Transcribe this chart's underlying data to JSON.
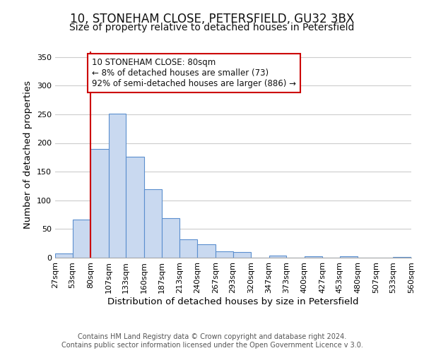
{
  "title": "10, STONEHAM CLOSE, PETERSFIELD, GU32 3BX",
  "subtitle": "Size of property relative to detached houses in Petersfield",
  "xlabel": "Distribution of detached houses by size in Petersfield",
  "ylabel": "Number of detached properties",
  "bar_color": "#c9d9f0",
  "bar_edge_color": "#5b8fce",
  "background_color": "#ffffff",
  "grid_color": "#cccccc",
  "vline_x": 80,
  "vline_color": "#cc0000",
  "annotation_box_text": "10 STONEHAM CLOSE: 80sqm\n← 8% of detached houses are smaller (73)\n92% of semi-detached houses are larger (886) →",
  "annotation_box_color": "#cc0000",
  "annotation_fontsize": 8.5,
  "footer_line1": "Contains HM Land Registry data © Crown copyright and database right 2024.",
  "footer_line2": "Contains public sector information licensed under the Open Government Licence v 3.0.",
  "bin_edges": [
    27,
    53,
    80,
    107,
    133,
    160,
    187,
    213,
    240,
    267,
    293,
    320,
    347,
    373,
    400,
    427,
    453,
    480,
    507,
    533,
    560
  ],
  "bin_heights": [
    7,
    66,
    189,
    251,
    176,
    119,
    69,
    32,
    24,
    11,
    10,
    0,
    4,
    0,
    3,
    0,
    2,
    0,
    0,
    1
  ],
  "tick_labels": [
    "27sqm",
    "53sqm",
    "80sqm",
    "107sqm",
    "133sqm",
    "160sqm",
    "187sqm",
    "213sqm",
    "240sqm",
    "267sqm",
    "293sqm",
    "320sqm",
    "347sqm",
    "373sqm",
    "400sqm",
    "427sqm",
    "453sqm",
    "480sqm",
    "507sqm",
    "533sqm",
    "560sqm"
  ],
  "ylim": [
    0,
    360
  ],
  "yticks": [
    0,
    50,
    100,
    150,
    200,
    250,
    300,
    350
  ],
  "title_fontsize": 12,
  "subtitle_fontsize": 10,
  "label_fontsize": 9.5,
  "tick_fontsize": 8,
  "footer_fontsize": 7
}
